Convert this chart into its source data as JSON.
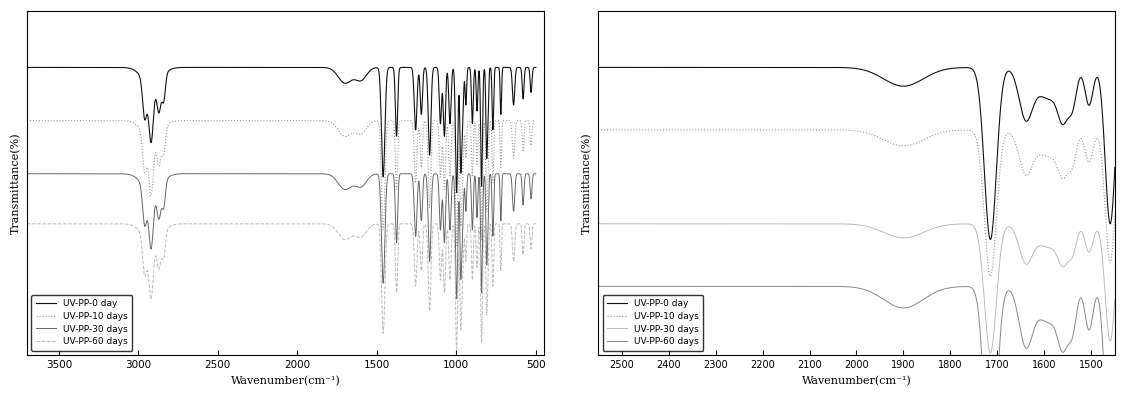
{
  "plot1": {
    "xlim": [
      3700,
      450
    ],
    "xlabel": "Wavenumber(cm⁻¹)",
    "ylabel": "Transmittance(%)",
    "xticks": [
      3500,
      3000,
      2500,
      2000,
      1500,
      1000,
      500
    ],
    "legend_labels": [
      "UV-PP-0 day",
      "UV-PP-10 days",
      "UV-PP-30 days",
      "UV-PP-60 days"
    ],
    "legend_styles": [
      {
        "color": "#111111",
        "linestyle": "-",
        "linewidth": 0.8
      },
      {
        "color": "#999999",
        "linestyle": ":",
        "linewidth": 0.8
      },
      {
        "color": "#666666",
        "linestyle": "-",
        "linewidth": 0.7
      },
      {
        "color": "#bbbbbb",
        "linestyle": "--",
        "linewidth": 0.7
      }
    ],
    "offsets": [
      0.92,
      0.75,
      0.58,
      0.42
    ],
    "ylim": [
      0.0,
      1.1
    ]
  },
  "plot2": {
    "xlim": [
      2550,
      1450
    ],
    "xlabel": "Wavenumber(cm⁻¹)",
    "ylabel": "Transmittance(%)",
    "xticks": [
      2500,
      2400,
      2300,
      2200,
      2100,
      2000,
      1900,
      1800,
      1700,
      1600,
      1500
    ],
    "legend_labels": [
      "UV-PP-0 day",
      "UV-PP-10 days",
      "UV-PP-30 days",
      "UV-PP-60 days"
    ],
    "legend_styles": [
      {
        "color": "#111111",
        "linestyle": "-",
        "linewidth": 0.8
      },
      {
        "color": "#999999",
        "linestyle": ":",
        "linewidth": 0.8
      },
      {
        "color": "#bbbbbb",
        "linestyle": "-",
        "linewidth": 0.7
      },
      {
        "color": "#888888",
        "linestyle": "-",
        "linewidth": 0.7
      }
    ],
    "offsets": [
      0.92,
      0.72,
      0.42,
      0.22
    ],
    "ylim": [
      0.0,
      1.1
    ]
  }
}
